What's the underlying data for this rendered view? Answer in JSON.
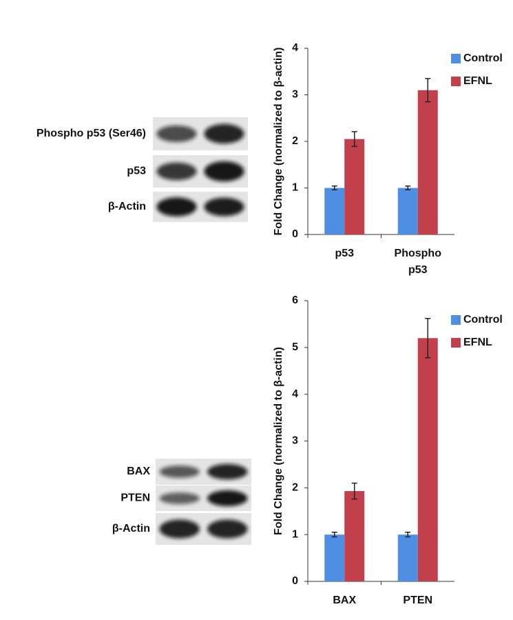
{
  "chart_data": [
    {
      "type": "bar",
      "y_label": "Fold Change (normalized to β-actin)",
      "categories": [
        "p53",
        "Phospho p53"
      ],
      "series": [
        {
          "name": "Control",
          "color": "#4f8fe3",
          "values": [
            1,
            1
          ],
          "errors": [
            0.04,
            0.04
          ]
        },
        {
          "name": "EFNL",
          "color": "#c23f4c",
          "values": [
            2.05,
            3.1
          ],
          "errors": [
            0.16,
            0.25
          ]
        }
      ],
      "ylim": [
        0,
        4
      ],
      "yticks": [
        0,
        1,
        2,
        3,
        4
      ],
      "grid": false,
      "legend": "top-right"
    },
    {
      "type": "bar",
      "y_label": "Fold Change (normalized to β-actin)",
      "categories": [
        "BAX",
        "PTEN"
      ],
      "series": [
        {
          "name": "Control",
          "color": "#4f8fe3",
          "values": [
            1,
            1
          ],
          "errors": [
            0.05,
            0.05
          ]
        },
        {
          "name": "EFNL",
          "color": "#c23f4c",
          "values": [
            1.93,
            5.2
          ],
          "errors": [
            0.17,
            0.42
          ]
        }
      ],
      "ylim": [
        0,
        6
      ],
      "yticks": [
        0,
        1,
        2,
        3,
        4,
        5,
        6
      ],
      "grid": false,
      "legend": "top-right"
    }
  ],
  "blots": [
    {
      "labels": [
        "Phospho p53 (Ser46)",
        "p53",
        "β-Actin"
      ]
    },
    {
      "labels": [
        "BAX",
        "PTEN",
        "β-Actin"
      ]
    }
  ]
}
